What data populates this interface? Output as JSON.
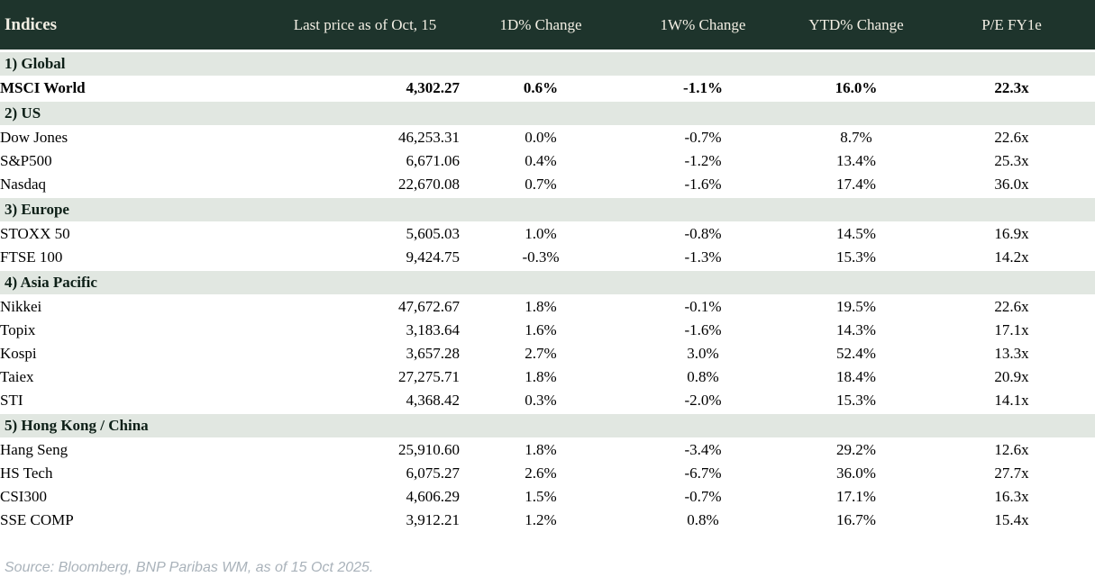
{
  "header": {
    "columns": [
      "Indices",
      "Last price as of Oct, 15",
      "1D% Change",
      "1W% Change",
      "YTD% Change",
      "P/E FY1e"
    ]
  },
  "sections": [
    {
      "label": "1) Global",
      "rows": [
        {
          "name": "MSCI World",
          "price": "4,302.27",
          "chg_1d": "0.6%",
          "chg_1d_color": "pos",
          "chg_1w": "-1.1%",
          "chg_1w_color": "neg",
          "ytd": "16.0%",
          "ytd_color": "pos",
          "pe": "22.3x",
          "emphasis": true
        }
      ]
    },
    {
      "label": "2) US",
      "rows": [
        {
          "name": "Dow Jones",
          "price": "46,253.31",
          "chg_1d": "0.0%",
          "chg_1d_color": "neg",
          "chg_1w": "-0.7%",
          "chg_1w_color": "neg",
          "ytd": "8.7%",
          "ytd_color": "pos",
          "pe": "22.6x",
          "emphasis": false
        },
        {
          "name": "S&P500",
          "price": "6,671.06",
          "chg_1d": "0.4%",
          "chg_1d_color": "pos",
          "chg_1w": "-1.2%",
          "chg_1w_color": "neg",
          "ytd": "13.4%",
          "ytd_color": "pos",
          "pe": "25.3x",
          "emphasis": false
        },
        {
          "name": "Nasdaq",
          "price": "22,670.08",
          "chg_1d": "0.7%",
          "chg_1d_color": "pos",
          "chg_1w": "-1.6%",
          "chg_1w_color": "neg",
          "ytd": "17.4%",
          "ytd_color": "pos",
          "pe": "36.0x",
          "emphasis": false
        }
      ]
    },
    {
      "label": "3) Europe",
      "rows": [
        {
          "name": "STOXX 50",
          "price": "5,605.03",
          "chg_1d": "1.0%",
          "chg_1d_color": "pos",
          "chg_1w": "-0.8%",
          "chg_1w_color": "neg",
          "ytd": "14.5%",
          "ytd_color": "pos",
          "pe": "16.9x",
          "emphasis": false
        },
        {
          "name": "FTSE 100",
          "price": "9,424.75",
          "chg_1d": "-0.3%",
          "chg_1d_color": "neg",
          "chg_1w": "-1.3%",
          "chg_1w_color": "neg",
          "ytd": "15.3%",
          "ytd_color": "pos",
          "pe": "14.2x",
          "emphasis": false
        }
      ]
    },
    {
      "label": "4) Asia Pacific",
      "rows": [
        {
          "name": "Nikkei",
          "price": "47,672.67",
          "chg_1d": "1.8%",
          "chg_1d_color": "pos",
          "chg_1w": "-0.1%",
          "chg_1w_color": "neg",
          "ytd": "19.5%",
          "ytd_color": "pos",
          "pe": "22.6x",
          "emphasis": false
        },
        {
          "name": "Topix",
          "price": "3,183.64",
          "chg_1d": "1.6%",
          "chg_1d_color": "pos",
          "chg_1w": "-1.6%",
          "chg_1w_color": "neg",
          "ytd": "14.3%",
          "ytd_color": "pos",
          "pe": "17.1x",
          "emphasis": false
        },
        {
          "name": "Kospi",
          "price": "3,657.28",
          "chg_1d": "2.7%",
          "chg_1d_color": "pos",
          "chg_1w": "3.0%",
          "chg_1w_color": "pos",
          "ytd": "52.4%",
          "ytd_color": "pos",
          "pe": "13.3x",
          "emphasis": false
        },
        {
          "name": "Taiex",
          "price": "27,275.71",
          "chg_1d": "1.8%",
          "chg_1d_color": "pos",
          "chg_1w": "0.8%",
          "chg_1w_color": "pos",
          "ytd": "18.4%",
          "ytd_color": "pos",
          "pe": "20.9x",
          "emphasis": false
        },
        {
          "name": "STI",
          "price": "4,368.42",
          "chg_1d": "0.3%",
          "chg_1d_color": "pos",
          "chg_1w": "-2.0%",
          "chg_1w_color": "neg",
          "ytd": "15.3%",
          "ytd_color": "pos",
          "pe": "14.1x",
          "emphasis": false
        }
      ]
    },
    {
      "label": "5) Hong Kong / China",
      "rows": [
        {
          "name": "Hang Seng",
          "price": "25,910.60",
          "chg_1d": "1.8%",
          "chg_1d_color": "pos",
          "chg_1w": "-3.4%",
          "chg_1w_color": "neg",
          "ytd": "29.2%",
          "ytd_color": "pos",
          "pe": "12.6x",
          "emphasis": false
        },
        {
          "name": "HS Tech",
          "price": "6,075.27",
          "chg_1d": "2.6%",
          "chg_1d_color": "pos",
          "chg_1w": "-6.7%",
          "chg_1w_color": "neg",
          "ytd": "36.0%",
          "ytd_color": "pos",
          "pe": "27.7x",
          "emphasis": false
        },
        {
          "name": "CSI300",
          "price": "4,606.29",
          "chg_1d": "1.5%",
          "chg_1d_color": "pos",
          "chg_1w": "-0.7%",
          "chg_1w_color": "neg",
          "ytd": "17.1%",
          "ytd_color": "pos",
          "pe": "16.3x",
          "emphasis": false
        },
        {
          "name": "SSE COMP",
          "price": "3,912.21",
          "chg_1d": "1.2%",
          "chg_1d_color": "pos",
          "chg_1w": "0.8%",
          "chg_1w_color": "pos",
          "ytd": "16.7%",
          "ytd_color": "pos",
          "pe": "15.4x",
          "emphasis": false
        }
      ]
    }
  ],
  "footer": {
    "source": "Source: Bloomberg, BNP Paribas WM, as of 15 Oct 2025."
  },
  "colors": {
    "header_bg": "#1e342c",
    "header_text": "#f3efe4",
    "section_bg": "#e1e7e1",
    "positive": "#008000",
    "negative": "#c00000",
    "body_text": "#000000",
    "source_text": "#a9b2ba"
  }
}
